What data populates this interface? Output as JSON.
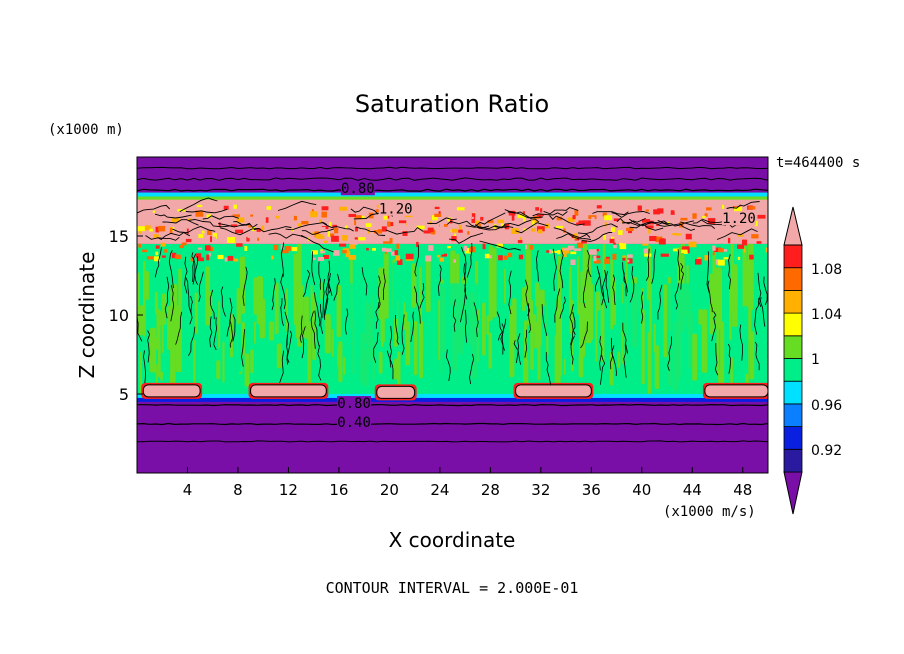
{
  "chart_data": {
    "type": "heatmap",
    "title": "Saturation Ratio",
    "xlabel": "X coordinate",
    "ylabel": "Z coordinate",
    "x_units": "(x1000 m/s)",
    "y_units": "(x1000 m)",
    "time_label": "t=464400 s",
    "footer": "CONTOUR INTERVAL = 2.000E-01",
    "xlim": [
      0,
      50
    ],
    "ylim": [
      0,
      20
    ],
    "x_ticks": [
      4,
      8,
      12,
      16,
      20,
      24,
      28,
      32,
      36,
      40,
      44,
      48
    ],
    "y_ticks": [
      5,
      10,
      15
    ],
    "contour_labels": [
      {
        "text": "0.80",
        "x": 17.5,
        "y": 17.9
      },
      {
        "text": "1.20",
        "x": 20.5,
        "y": 16.6
      },
      {
        "text": "1.20",
        "x": 47.7,
        "y": 16.0
      },
      {
        "text": "0.80",
        "x": 17.2,
        "y": 4.3
      },
      {
        "text": "0.40",
        "x": 17.2,
        "y": 3.1
      }
    ],
    "colorbar": {
      "levels": [
        0.92,
        0.96,
        1,
        1.04,
        1.08
      ],
      "tick_labels": [
        "1.08",
        "1.04",
        "1",
        "0.96",
        "0.92"
      ],
      "colors": [
        "#7a0fa8",
        "#2a1aa0",
        "#0a20e0",
        "#0a7fff",
        "#00e0ff",
        "#00ee88",
        "#66dd22",
        "#ffff00",
        "#ffb000",
        "#ff6a00",
        "#ff1e1e",
        "#f2a8a8"
      ]
    },
    "fields": {
      "stratosphere": {
        "z_range": [
          17.5,
          20
        ],
        "value": 0.8,
        "color": "#7a0fa8"
      },
      "cloud_top": {
        "z_range": [
          14.5,
          17.5
        ],
        "value": 1.2,
        "color": "#f2a8a8"
      },
      "convective_layer": {
        "z_range": [
          5,
          14.5
        ],
        "value": 1,
        "color": "#00ee88"
      },
      "boundary_layer": {
        "z_range": [
          0,
          4.5
        ],
        "value": 0.4,
        "color": "#7a0fa8"
      },
      "low_cloud_patches": [
        {
          "x_range": [
            0.5,
            5
          ],
          "z": 5.2
        },
        {
          "x_range": [
            9,
            15
          ],
          "z": 5.2
        },
        {
          "x_range": [
            19,
            22
          ],
          "z": 5.1
        },
        {
          "x_range": [
            30,
            36
          ],
          "z": 5.2
        },
        {
          "x_range": [
            45,
            50
          ],
          "z": 5.2
        }
      ]
    }
  }
}
